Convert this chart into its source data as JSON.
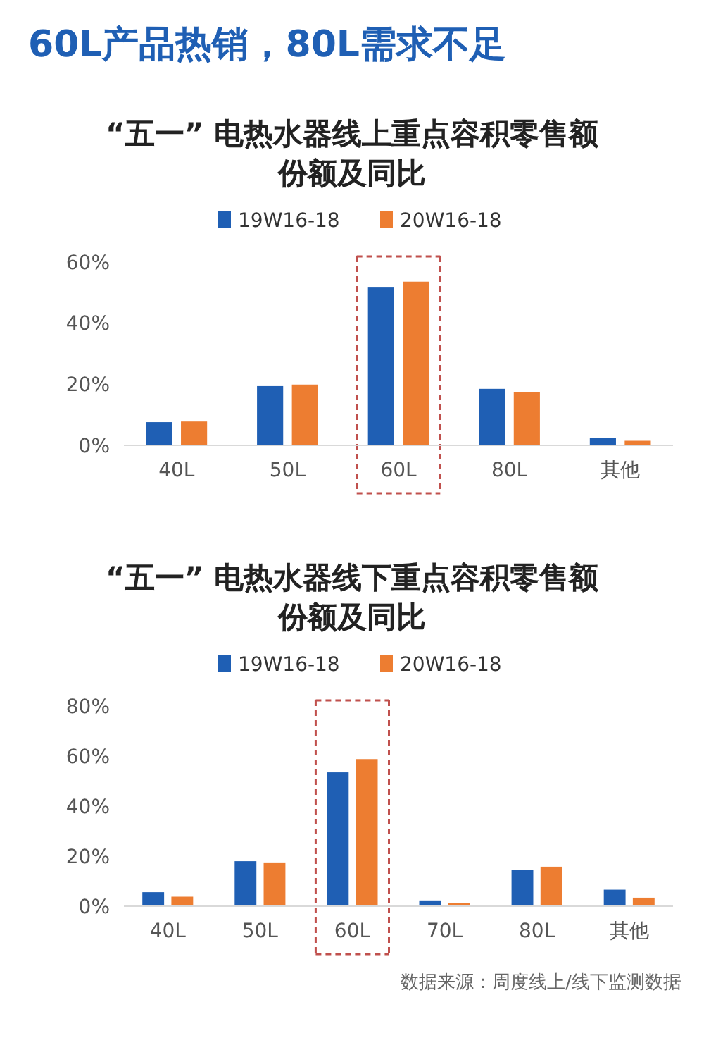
{
  "chart_data": [
    {
      "type": "bar",
      "title": "“五一” 电热水器线上重点容积零售额份额及同比",
      "annotations": [
        "60L产品热销，80L需求不足"
      ],
      "categories": [
        "40L",
        "50L",
        "60L",
        "80L",
        "其他"
      ],
      "series": [
        {
          "name": "19W16-18",
          "color": "#1f5fb4",
          "values": [
            7.6,
            19.4,
            51.9,
            18.5,
            2.4
          ]
        },
        {
          "name": "20W16-18",
          "color": "#ed7d31",
          "values": [
            7.8,
            19.9,
            53.6,
            17.4,
            1.5
          ]
        }
      ],
      "ylim": [
        0,
        60
      ],
      "yticks": [
        {
          "value": 0,
          "label": "0%"
        },
        {
          "value": 20,
          "label": "20%"
        },
        {
          "value": 40,
          "label": "40%"
        },
        {
          "value": 60,
          "label": "60%"
        }
      ],
      "legend": "top"
    },
    {
      "type": "bar",
      "title": "“五一” 电热水器线下重点容积零售额份额及同比",
      "annotations": [
        "数据来源：周度线上/线下监测数据"
      ],
      "categories": [
        "40L",
        "50L",
        "60L",
        "70L",
        "80L",
        "其他"
      ],
      "series": [
        {
          "name": "19W16-18",
          "color": "#1f5fb4",
          "values": [
            5.6,
            18.0,
            53.5,
            2.3,
            14.6,
            6.6
          ]
        },
        {
          "name": "20W16-18",
          "color": "#ed7d31",
          "values": [
            3.8,
            17.5,
            58.8,
            1.3,
            15.8,
            3.4
          ]
        }
      ],
      "ylim": [
        0,
        80
      ],
      "yticks": [
        {
          "value": 0,
          "label": "0%"
        },
        {
          "value": 20,
          "label": "20%"
        },
        {
          "value": 40,
          "label": "40%"
        },
        {
          "value": 60,
          "label": "60%"
        },
        {
          "value": 80,
          "label": "80%"
        }
      ],
      "legend": "top"
    }
  ]
}
